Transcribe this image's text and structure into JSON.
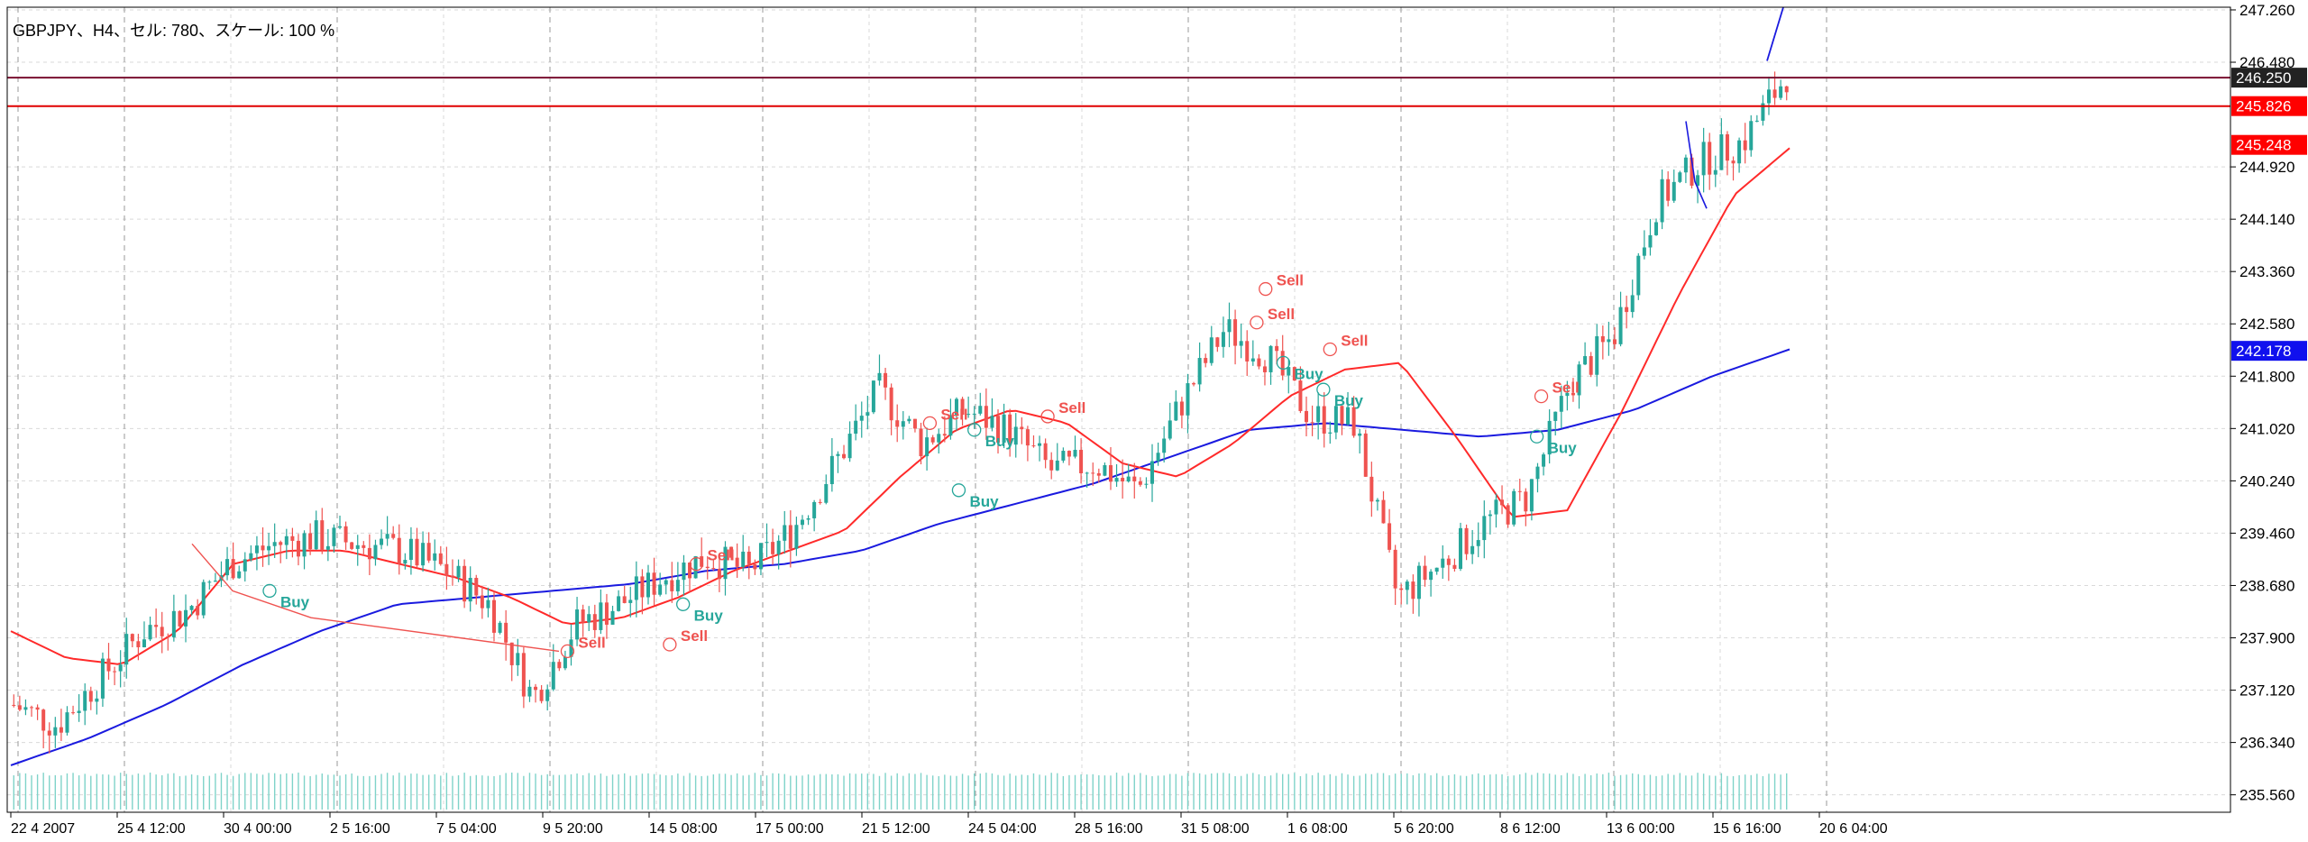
{
  "chart_title": "GBPJPY、H4、セル: 780、スケール: 100 %",
  "colors": {
    "bull": "#26a69a",
    "bear": "#ef5350",
    "ma_fast": "#ff2a2a",
    "ma_slow": "#1a1adf",
    "grid": "#d9d9d9",
    "signal_buy": "#26a69a",
    "signal_sell": "#ef5350"
  },
  "chart_data": {
    "type": "candlestick",
    "symbol": "GBPJPY",
    "timeframe": "H4",
    "ylim": [
      235.3,
      247.3
    ],
    "y_ticks": [
      "247.260",
      "246.480",
      "244.920",
      "244.140",
      "243.360",
      "242.580",
      "241.800",
      "241.020",
      "240.240",
      "239.460",
      "238.680",
      "237.900",
      "237.120",
      "236.340",
      "235.560"
    ],
    "x_ticks": [
      "22 4 2007",
      "25 4 12:00",
      "30 4 00:00",
      "2 5 16:00",
      "7 5 04:00",
      "9 5 20:00",
      "14 5 08:00",
      "17 5 00:00",
      "21 5 12:00",
      "24 5 04:00",
      "28 5 16:00",
      "31 5 08:00",
      "1 6 08:00",
      "5 6 20:00",
      "8 6 12:00",
      "13 6 00:00",
      "15 6 16:00",
      "20 6 04:00"
    ],
    "close_anchors": [
      236.9,
      236.6,
      237.3,
      238.0,
      238.3,
      239.0,
      239.3,
      239.4,
      239.3,
      239.2,
      238.9,
      238.4,
      237.0,
      238.1,
      238.4,
      238.8,
      239.1,
      238.9,
      239.5,
      240.5,
      241.6,
      240.8,
      241.3,
      241.0,
      240.4,
      240.5,
      240.1,
      241.4,
      242.5,
      242.1,
      241.2,
      241.1,
      238.5,
      239.0,
      239.6,
      240.0,
      241.7,
      242.4,
      244.4,
      245.0,
      245.3,
      246.3
    ],
    "ma_fast_anchors": [
      238.0,
      237.6,
      237.5,
      238.0,
      239.0,
      239.2,
      239.2,
      239.0,
      238.8,
      238.5,
      238.1,
      238.2,
      238.5,
      238.9,
      239.2,
      239.5,
      240.3,
      241.0,
      241.3,
      241.1,
      240.5,
      240.3,
      240.8,
      241.5,
      241.9,
      242.0,
      240.9,
      239.7,
      239.8,
      241.3,
      243.0,
      244.5,
      245.2
    ],
    "ma_slow_anchors": [
      236.0,
      236.4,
      236.9,
      237.5,
      238.0,
      238.4,
      238.5,
      238.6,
      238.7,
      238.9,
      239.0,
      239.2,
      239.6,
      239.9,
      240.2,
      240.6,
      241.0,
      241.1,
      241.0,
      240.9,
      241.0,
      241.3,
      241.8,
      242.2
    ],
    "horizontal_levels": [
      {
        "price": 246.25,
        "label": "246.250",
        "label_bg": "#222222"
      },
      {
        "price": 245.826,
        "label": "245.826",
        "label_bg": "#ff0000"
      }
    ],
    "price_tags": [
      {
        "price": 245.248,
        "label": "245.248",
        "label_bg": "#ff0000"
      },
      {
        "price": 242.178,
        "label": "242.178",
        "label_bg": "#1010ee"
      }
    ],
    "signals": [
      {
        "label": "Buy",
        "type": "buy",
        "x": 0.118,
        "price": 238.6
      },
      {
        "label": "Sell",
        "type": "sell",
        "x": 0.252,
        "price": 237.7
      },
      {
        "label": "Buy",
        "type": "buy",
        "x": 0.304,
        "price": 238.4
      },
      {
        "label": "Sell",
        "type": "sell",
        "x": 0.31,
        "price": 239.0
      },
      {
        "label": "Sell",
        "type": "sell",
        "x": 0.298,
        "price": 237.8
      },
      {
        "label": "Sell",
        "type": "sell",
        "x": 0.415,
        "price": 241.1
      },
      {
        "label": "Buy",
        "type": "buy",
        "x": 0.435,
        "price": 241.0
      },
      {
        "label": "Buy",
        "type": "buy",
        "x": 0.428,
        "price": 240.1
      },
      {
        "label": "Sell",
        "type": "sell",
        "x": 0.468,
        "price": 241.2
      },
      {
        "label": "Sell",
        "type": "sell",
        "x": 0.566,
        "price": 243.1
      },
      {
        "label": "Sell",
        "type": "sell",
        "x": 0.562,
        "price": 242.6
      },
      {
        "label": "Sell",
        "type": "sell",
        "x": 0.595,
        "price": 242.2
      },
      {
        "label": "Buy",
        "type": "buy",
        "x": 0.574,
        "price": 242.0
      },
      {
        "label": "Buy",
        "type": "buy",
        "x": 0.592,
        "price": 241.6
      },
      {
        "label": "Sell",
        "type": "sell",
        "x": 0.69,
        "price": 241.5
      },
      {
        "label": "Buy",
        "type": "buy",
        "x": 0.688,
        "price": 240.9
      }
    ]
  }
}
